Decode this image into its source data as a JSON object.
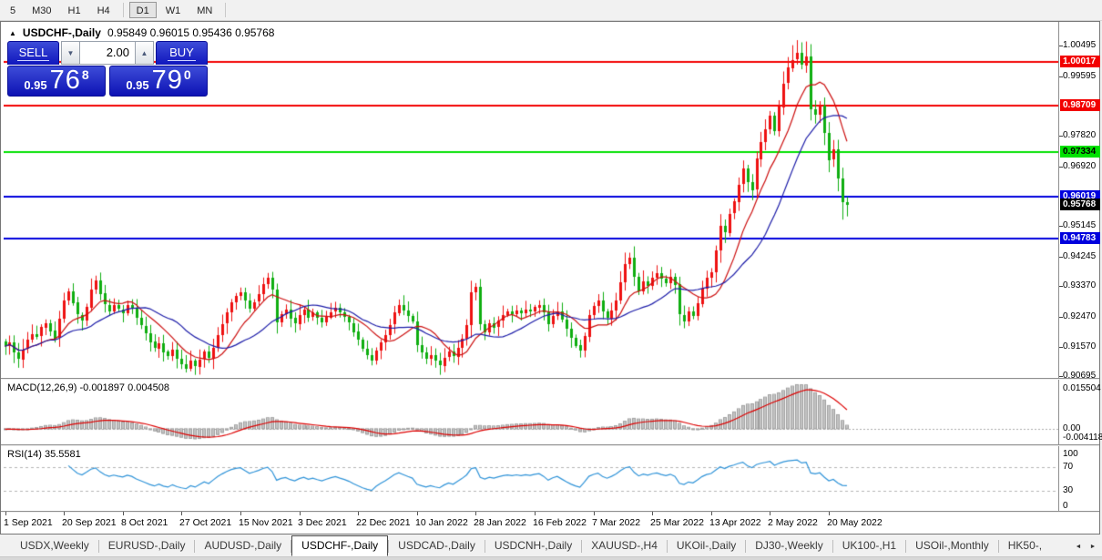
{
  "toolbar": {
    "items": [
      "5",
      "M30",
      "H1",
      "H4",
      "|",
      "D1",
      "W1",
      "MN",
      "|"
    ],
    "active": "D1"
  },
  "chart_window": {
    "collapse_icon": "▲",
    "title_symbol": "USDCHF-,Daily",
    "title_ohlc": "0.95849 0.96015 0.95436 0.95768"
  },
  "trade_panel": {
    "sell_label": "SELL",
    "buy_label": "BUY",
    "volume": "2.00",
    "down_arrow": "▼",
    "up_arrow": "▲",
    "sell_price": {
      "small": "0.95",
      "big": "76",
      "sup": "8"
    },
    "buy_price": {
      "small": "0.95",
      "big": "79",
      "sup": "0"
    }
  },
  "chart_data": {
    "type": "candlestick",
    "symbol": "USDCHF-",
    "timeframe": "Daily",
    "first_open": 0.9172,
    "closes": [
      0.9158,
      0.917,
      0.914,
      0.912,
      0.915,
      0.9178,
      0.9195,
      0.9188,
      0.9215,
      0.9228,
      0.9205,
      0.9182,
      0.924,
      0.9295,
      0.9322,
      0.9288,
      0.9252,
      0.9235,
      0.9275,
      0.9328,
      0.9355,
      0.9315,
      0.9282,
      0.9262,
      0.928,
      0.9268,
      0.9258,
      0.9282,
      0.927,
      0.9242,
      0.922,
      0.9198,
      0.9172,
      0.9152,
      0.9168,
      0.9142,
      0.9128,
      0.9148,
      0.9122,
      0.9105,
      0.9092,
      0.9115,
      0.9098,
      0.912,
      0.9142,
      0.9122,
      0.9155,
      0.9192,
      0.9225,
      0.9258,
      0.9288,
      0.9308,
      0.9318,
      0.9295,
      0.9272,
      0.929,
      0.9312,
      0.9342,
      0.9362,
      0.9328,
      0.9232,
      0.9255,
      0.9268,
      0.9242,
      0.9225,
      0.9252,
      0.9268,
      0.9245,
      0.9258,
      0.9242,
      0.9228,
      0.9245,
      0.926,
      0.9272,
      0.9258,
      0.9245,
      0.9228,
      0.9202,
      0.9178,
      0.9152,
      0.9132,
      0.9115,
      0.9145,
      0.917,
      0.9192,
      0.9222,
      0.9258,
      0.9282,
      0.9265,
      0.9248,
      0.9232,
      0.9162,
      0.914,
      0.912,
      0.9132,
      0.9115,
      0.9102,
      0.9125,
      0.9142,
      0.9128,
      0.9155,
      0.9182,
      0.9222,
      0.932,
      0.9335,
      0.9225,
      0.9202,
      0.9228,
      0.9215,
      0.9235,
      0.9252,
      0.9262,
      0.9255,
      0.9265,
      0.9258,
      0.9268,
      0.9262,
      0.9275,
      0.9282,
      0.926,
      0.9225,
      0.9248,
      0.9262,
      0.9238,
      0.9212,
      0.9185,
      0.9162,
      0.9145,
      0.9188,
      0.9252,
      0.9278,
      0.9295,
      0.9262,
      0.9242,
      0.9265,
      0.9295,
      0.9348,
      0.9402,
      0.9422,
      0.9365,
      0.9322,
      0.9352,
      0.9338,
      0.9362,
      0.9375,
      0.9358,
      0.9345,
      0.9365,
      0.9342,
      0.9252,
      0.9232,
      0.9262,
      0.9248,
      0.9285,
      0.933,
      0.9362,
      0.9378,
      0.9442,
      0.9515,
      0.9495,
      0.9552,
      0.9588,
      0.9638,
      0.9685,
      0.9645,
      0.9622,
      0.9715,
      0.9765,
      0.9802,
      0.9842,
      0.9795,
      0.9868,
      0.9938,
      0.9985,
      1.0008,
      1.0028,
      0.9992,
      1.0018,
      0.9862,
      0.9845,
      0.9872,
      0.9792,
      0.9712,
      0.9742,
      0.9655,
      0.95849,
      0.95768
    ],
    "wick_overrides": {
      "3": {
        "l": 0.9095
      },
      "20": {
        "h": 0.9368
      },
      "40": {
        "l": 0.9081
      },
      "58": {
        "h": 0.9376
      },
      "81": {
        "l": 0.9102
      },
      "104": {
        "h": 0.9346
      },
      "138": {
        "h": 0.9436
      },
      "174": {
        "h": 1.0051
      },
      "175": {
        "h": 1.0066
      },
      "177": {
        "h": 1.0062
      },
      "185": {
        "l": 0.9534
      },
      "186": {
        "h": 0.96015,
        "l": 0.95436
      }
    },
    "ma_fast_period": 10,
    "ma_slow_period": 20,
    "x_labels": [
      "1 Sep 2021",
      "20 Sep 2021",
      "8 Oct 2021",
      "27 Oct 2021",
      "15 Nov 2021",
      "3 Dec 2021",
      "22 Dec 2021",
      "10 Jan 2022",
      "28 Jan 2022",
      "16 Feb 2022",
      "7 Mar 2022",
      "25 Mar 2022",
      "13 Apr 2022",
      "2 May 2022",
      "20 May 2022"
    ],
    "x_label_interval_bars": 13,
    "price_axis": {
      "min": 0.9065,
      "max": 1.0104,
      "plain_ticks": [
        "1.00495",
        "0.99595",
        "0.97820",
        "0.96920",
        "0.95145",
        "0.94245",
        "0.93370",
        "0.92470",
        "0.91570",
        "0.90695"
      ],
      "badges": [
        {
          "text": "1.00017",
          "bg": "red"
        },
        {
          "text": "0.98709",
          "bg": "red"
        },
        {
          "text": "0.97334",
          "bg": "green"
        },
        {
          "text": "0.96019",
          "bg": "blue"
        },
        {
          "text": "0.95768",
          "bg": "black"
        },
        {
          "text": "0.94783",
          "bg": "blue"
        }
      ],
      "lines": [
        {
          "value": 1.00017,
          "color": "red"
        },
        {
          "value": 0.98709,
          "color": "red"
        },
        {
          "value": 0.97334,
          "color": "green"
        },
        {
          "value": 0.96019,
          "color": "blue"
        },
        {
          "value": 0.94783,
          "color": "blue"
        }
      ]
    },
    "indicators": {
      "macd": {
        "label": "MACD(12,26,9)",
        "values_text": "-0.001897 0.004508",
        "fast": 12,
        "slow": 26,
        "signal": 9,
        "axis_max": "0.015504",
        "axis_zero": "0.00",
        "axis_min": "-0.004118"
      },
      "rsi": {
        "label": "RSI(14)",
        "value_text": "35.5581",
        "period": 14,
        "axis_ticks": [
          100,
          70,
          30,
          0
        ],
        "levels": [
          70,
          30
        ]
      }
    },
    "colors": {
      "up": "#ee1111",
      "down": "#0fae10",
      "ma_fast": "#cc0f0f",
      "ma_slow": "#1c1ca8",
      "red": "#f20000",
      "green": "#00e100",
      "blue": "#0000dd",
      "black": "#000000",
      "macd_hist": "#c4c4c4",
      "macd_signal": "#dd0000",
      "rsi_line": "#2f93d8"
    }
  },
  "tab_bar": {
    "tabs": [
      "USDX,Weekly",
      "EURUSD-,Daily",
      "AUDUSD-,Daily",
      "USDCHF-,Daily",
      "USDCAD-,Daily",
      "USDCNH-,Daily",
      "XAUUSD-,H4",
      "UKOil-,Daily",
      "DJ30-,Weekly",
      "UK100-,H1",
      "USOil-,Monthly",
      "HK50-,"
    ],
    "active_index": 3,
    "scroll_left_icon": "◄",
    "scroll_right_icon": "►"
  }
}
